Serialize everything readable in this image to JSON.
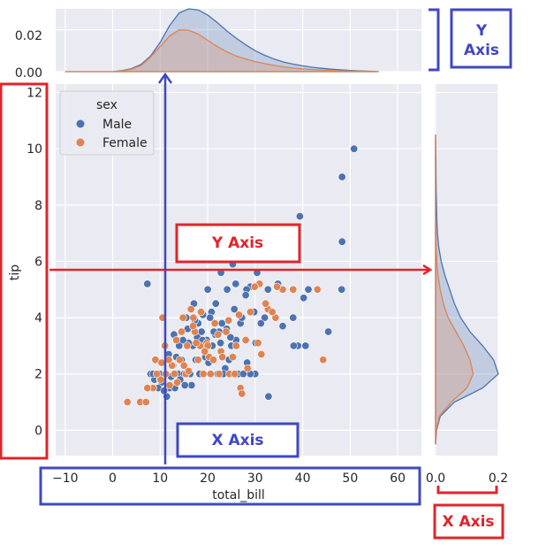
{
  "chart_data": [
    {
      "type": "scatter",
      "xlabel": "total_bill",
      "ylabel": "tip",
      "xlim": [
        -12,
        65
      ],
      "ylim": [
        -0.9,
        12.3
      ],
      "xticks": [
        -10,
        0,
        10,
        20,
        30,
        40,
        50,
        60
      ],
      "yticks": [
        0,
        2,
        4,
        6,
        8,
        10,
        12
      ],
      "grid": true,
      "legend": {
        "title": "sex",
        "placement": "top-left"
      },
      "series": [
        {
          "name": "Male",
          "color": "#4c72b0",
          "points": [
            [
              50.8,
              10.0
            ],
            [
              48.3,
              9.0
            ],
            [
              48.3,
              6.7
            ],
            [
              39.4,
              7.6
            ],
            [
              48.2,
              5.0
            ],
            [
              34.8,
              5.2
            ],
            [
              41.2,
              5.0
            ],
            [
              40.2,
              4.7
            ],
            [
              38.0,
              4.0
            ],
            [
              45.4,
              3.5
            ],
            [
              40.6,
              3.0
            ],
            [
              39.0,
              3.0
            ],
            [
              38.1,
              3.0
            ],
            [
              32.7,
              5.0
            ],
            [
              30.4,
              5.6
            ],
            [
              29.0,
              5.1
            ],
            [
              28.2,
              5.0
            ],
            [
              25.3,
              5.9
            ],
            [
              22.8,
              5.6
            ],
            [
              24.1,
              5.0
            ],
            [
              25.9,
              5.2
            ],
            [
              28.0,
              4.8
            ],
            [
              32.0,
              4.0
            ],
            [
              29.8,
              4.2
            ],
            [
              26.9,
              3.8
            ],
            [
              25.6,
              4.3
            ],
            [
              27.2,
              4.0
            ],
            [
              30.1,
              3.1
            ],
            [
              31.2,
              3.8
            ],
            [
              35.8,
              3.7
            ],
            [
              32.8,
              1.2
            ],
            [
              30.0,
              2.0
            ],
            [
              29.0,
              2.0
            ],
            [
              28.3,
              2.4
            ],
            [
              26.0,
              3.2
            ],
            [
              24.5,
              2.5
            ],
            [
              23.7,
              2.2
            ],
            [
              22.4,
              3.5
            ],
            [
              21.6,
              3.4
            ],
            [
              20.8,
              4.2
            ],
            [
              20.0,
              5.0
            ],
            [
              19.8,
              3.2
            ],
            [
              18.7,
              3.5
            ],
            [
              17.8,
              3.3
            ],
            [
              16.9,
              3.0
            ],
            [
              16.0,
              3.1
            ],
            [
              15.5,
              4.0
            ],
            [
              14.5,
              2.5
            ],
            [
              13.8,
              2.0
            ],
            [
              13.0,
              2.0
            ],
            [
              12.7,
              2.3
            ],
            [
              12.0,
              1.5
            ],
            [
              11.2,
              2.0
            ],
            [
              10.3,
              1.7
            ],
            [
              9.6,
              1.5
            ],
            [
              8.8,
              1.8
            ],
            [
              8.0,
              2.0
            ],
            [
              7.3,
              5.2
            ],
            [
              7.5,
              1.5
            ],
            [
              8.5,
              2.0
            ],
            [
              10.0,
              1.8
            ],
            [
              11.4,
              1.2
            ],
            [
              12.9,
              3.4
            ],
            [
              14.0,
              3.0
            ],
            [
              15.0,
              2.0
            ],
            [
              16.3,
              2.0
            ],
            [
              17.5,
              2.5
            ],
            [
              18.3,
              2.0
            ],
            [
              19.5,
              2.6
            ],
            [
              21.0,
              3.0
            ],
            [
              22.1,
              2.0
            ],
            [
              23.3,
              2.0
            ],
            [
              24.0,
              3.6
            ],
            [
              20.5,
              4.0
            ],
            [
              19.0,
              4.1
            ],
            [
              17.1,
              4.5
            ],
            [
              15.8,
              3.6
            ],
            [
              14.8,
              3.2
            ],
            [
              13.4,
              2.6
            ],
            [
              12.3,
              1.9
            ],
            [
              11.8,
              2.7
            ],
            [
              10.8,
              1.4
            ],
            [
              9.9,
              2.0
            ],
            [
              18.0,
              3.8
            ],
            [
              21.3,
              3.5
            ],
            [
              23.0,
              3.8
            ],
            [
              26.4,
              2.0
            ],
            [
              25.0,
              3.0
            ],
            [
              27.5,
              2.0
            ],
            [
              20.2,
              2.4
            ],
            [
              16.6,
              1.6
            ],
            [
              15.2,
              1.6
            ],
            [
              14.2,
              1.8
            ],
            [
              13.1,
              1.5
            ],
            [
              22.7,
              3.1
            ],
            [
              24.8,
              3.3
            ],
            [
              19.3,
              3.0
            ],
            [
              17.3,
              3.9
            ],
            [
              18.9,
              3.2
            ],
            [
              21.7,
              4.5
            ]
          ]
        },
        {
          "name": "Female",
          "color": "#dd8452",
          "points": [
            [
              44.3,
              2.5
            ],
            [
              43.1,
              5.0
            ],
            [
              35.8,
              5.0
            ],
            [
              34.6,
              5.1
            ],
            [
              32.7,
              4.3
            ],
            [
              30.9,
              5.2
            ],
            [
              34.3,
              4.0
            ],
            [
              29.9,
              5.1
            ],
            [
              26.6,
              4.1
            ],
            [
              25.3,
              2.6
            ],
            [
              31.3,
              2.7
            ],
            [
              29.0,
              4.2
            ],
            [
              28.0,
              3.2
            ],
            [
              26.9,
              1.5
            ],
            [
              24.6,
              2.0
            ],
            [
              22.8,
              2.8
            ],
            [
              20.3,
              2.6
            ],
            [
              19.8,
              3.1
            ],
            [
              18.4,
              3.0
            ],
            [
              17.3,
              3.5
            ],
            [
              16.5,
              4.3
            ],
            [
              15.7,
              3.0
            ],
            [
              14.5,
              3.5
            ],
            [
              13.0,
              2.0
            ],
            [
              12.5,
              2.3
            ],
            [
              11.2,
              2.0
            ],
            [
              10.1,
              1.8
            ],
            [
              9.3,
              2.0
            ],
            [
              8.5,
              1.5
            ],
            [
              7.3,
              1.5
            ],
            [
              5.8,
              1.0
            ],
            [
              3.1,
              1.0
            ],
            [
              7.0,
              1.0
            ],
            [
              9.0,
              2.5
            ],
            [
              10.5,
              4.0
            ],
            [
              11.0,
              3.0
            ],
            [
              12.0,
              1.6
            ],
            [
              13.4,
              3.2
            ],
            [
              14.1,
              2.5
            ],
            [
              15.4,
              2.0
            ],
            [
              16.0,
              2.1
            ],
            [
              17.0,
              4.0
            ],
            [
              18.0,
              2.5
            ],
            [
              19.1,
              2.0
            ],
            [
              20.0,
              3.0
            ],
            [
              21.2,
              2.5
            ],
            [
              22.2,
              3.4
            ],
            [
              23.9,
              3.5
            ],
            [
              25.7,
              2.0
            ],
            [
              27.2,
              1.3
            ],
            [
              28.4,
              2.2
            ],
            [
              30.6,
              3.1
            ],
            [
              32.2,
              4.5
            ],
            [
              33.6,
              4.2
            ],
            [
              38.0,
              5.0
            ],
            [
              16.9,
              3.7
            ],
            [
              14.8,
              4.0
            ],
            [
              13.6,
              1.7
            ],
            [
              11.8,
              2.5
            ],
            [
              10.3,
              2.4
            ],
            [
              18.6,
              4.2
            ],
            [
              22.4,
              2.0
            ],
            [
              26.0,
              3.0
            ],
            [
              21.5,
              3.8
            ],
            [
              19.4,
              2.8
            ],
            [
              24.4,
              3.9
            ],
            [
              23.1,
              2.6
            ],
            [
              20.6,
              2.0
            ],
            [
              17.6,
              3.1
            ],
            [
              15.0,
              2.3
            ]
          ]
        }
      ]
    },
    {
      "type": "area",
      "axis_side": "top marginal",
      "yticks": [
        0.0,
        0.02
      ],
      "ytick_labels": [
        "0.00",
        "0.02"
      ],
      "ylim": [
        0,
        0.03
      ],
      "x": [
        -10,
        0,
        2,
        4,
        6,
        8,
        10,
        12,
        14,
        16,
        18,
        20,
        22,
        24,
        26,
        28,
        30,
        32,
        34,
        36,
        38,
        40,
        42,
        44,
        46,
        48,
        50,
        52,
        54,
        56
      ],
      "series": [
        {
          "name": "Male",
          "color": "#4c72b0",
          "values": [
            0,
            0,
            0.0005,
            0.0015,
            0.0035,
            0.0075,
            0.014,
            0.022,
            0.028,
            0.03,
            0.0295,
            0.027,
            0.0235,
            0.0195,
            0.016,
            0.0128,
            0.01,
            0.0078,
            0.006,
            0.0046,
            0.0036,
            0.0028,
            0.0021,
            0.0016,
            0.0012,
            0.0009,
            0.0006,
            0.0004,
            0.0002,
            0
          ]
        },
        {
          "name": "Female",
          "color": "#dd8452",
          "values": [
            0,
            0,
            0.0004,
            0.0012,
            0.003,
            0.007,
            0.012,
            0.017,
            0.02,
            0.0198,
            0.018,
            0.015,
            0.012,
            0.0095,
            0.0075,
            0.006,
            0.0048,
            0.0038,
            0.003,
            0.0023,
            0.0017,
            0.0013,
            0.001,
            0.0008,
            0.0006,
            0.0004,
            0.0003,
            0.0002,
            0.0001,
            0
          ]
        }
      ]
    },
    {
      "type": "area",
      "axis_side": "right marginal",
      "xticks": [
        0.0,
        0.2
      ],
      "xtick_labels": [
        "0.0",
        "0.2"
      ],
      "xlim": [
        0,
        0.2
      ],
      "y": [
        -0.5,
        0,
        0.5,
        1,
        1.5,
        2,
        2.5,
        3,
        3.5,
        4,
        4.5,
        5,
        5.5,
        6,
        6.5,
        7,
        7.5,
        8,
        8.5,
        9,
        9.5,
        10,
        10.5
      ],
      "series": [
        {
          "name": "Male",
          "color": "#4c72b0",
          "values": [
            0,
            0.003,
            0.015,
            0.06,
            0.15,
            0.2,
            0.185,
            0.15,
            0.11,
            0.08,
            0.06,
            0.045,
            0.03,
            0.018,
            0.01,
            0.006,
            0.004,
            0.003,
            0.002,
            0.0015,
            0.001,
            0.0005,
            0
          ]
        },
        {
          "name": "Female",
          "color": "#dd8452",
          "values": [
            0,
            0.002,
            0.012,
            0.05,
            0.1,
            0.12,
            0.11,
            0.09,
            0.065,
            0.04,
            0.025,
            0.015,
            0.008,
            0.004,
            0.002,
            0.001,
            0.0005,
            0,
            0,
            0,
            0,
            0,
            0
          ]
        }
      ]
    }
  ],
  "annotations": {
    "y_axis_scatter": "Y Axis",
    "x_axis_scatter": "X Axis",
    "y_axis_marginal": [
      "Y",
      "Axis"
    ],
    "x_axis_marginal": "X Axis"
  },
  "colors": {
    "plot_bg": "#eaeaf2",
    "grid": "#ffffff",
    "annotation_red": "#e0242b",
    "annotation_blue": "#3f48c1"
  }
}
